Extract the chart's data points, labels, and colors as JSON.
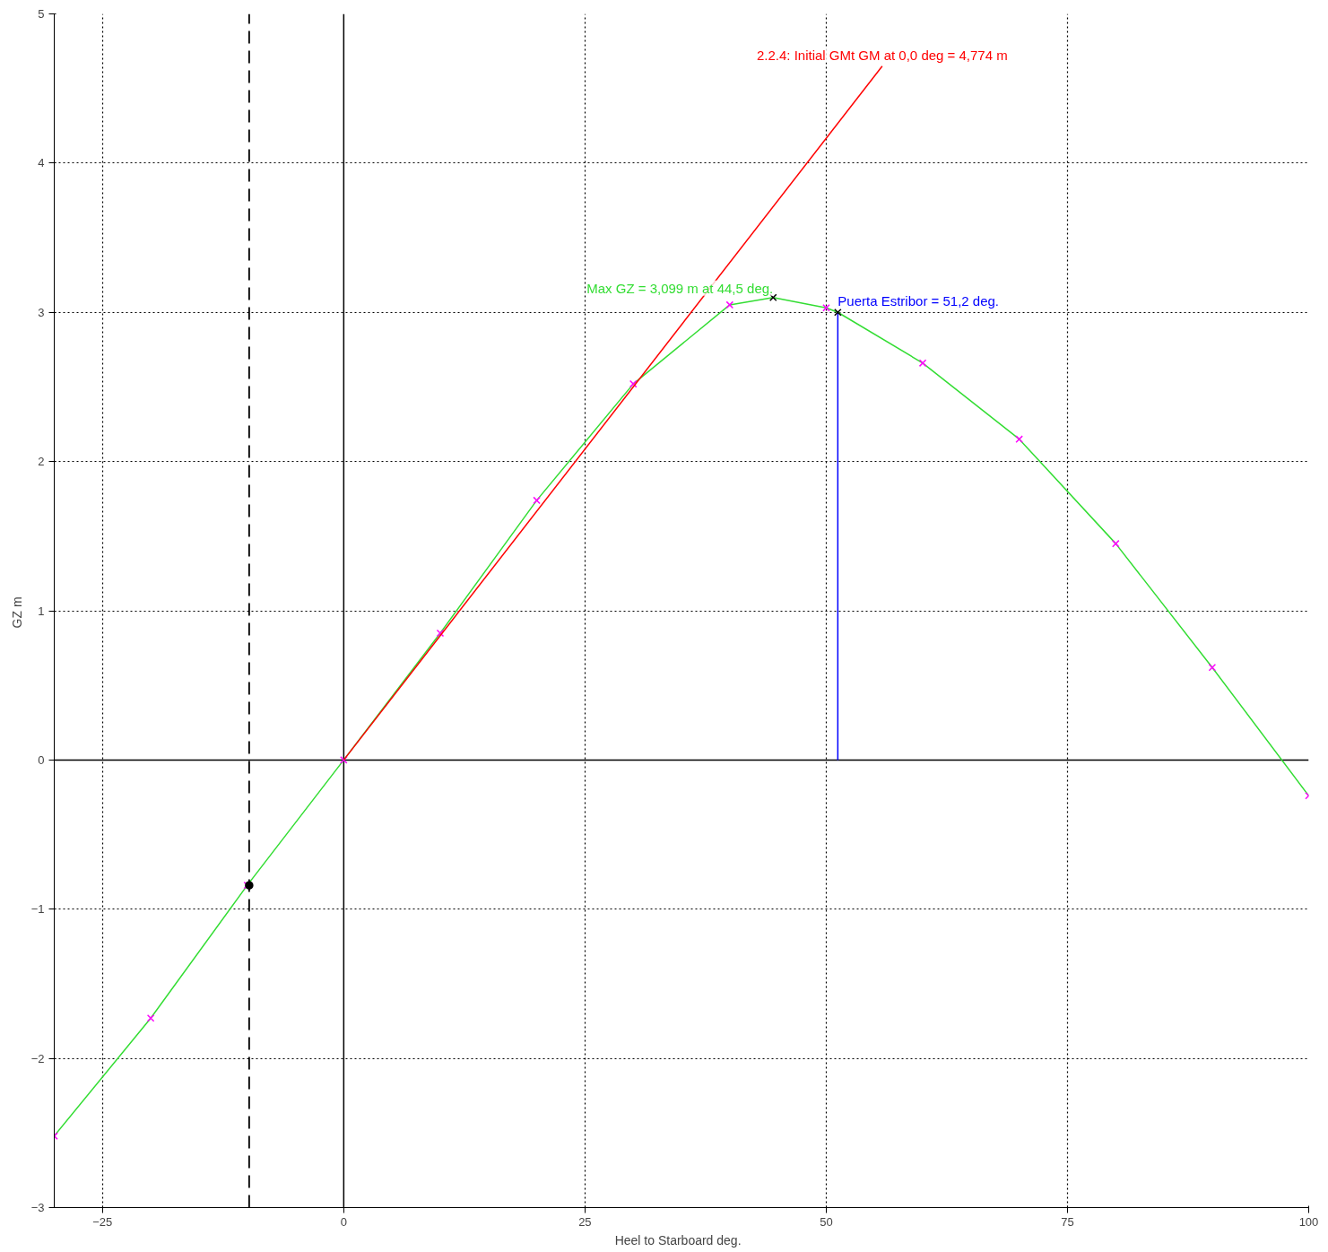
{
  "chart_data": {
    "type": "line",
    "xlabel": "Heel to Starboard   deg.",
    "ylabel": "GZ  m",
    "xlim": [
      -30,
      100
    ],
    "ylim": [
      -3,
      5
    ],
    "xticks": [
      -25,
      0,
      25,
      50,
      75,
      100
    ],
    "yticks": [
      -3,
      -2,
      -1,
      0,
      1,
      2,
      3,
      4,
      5
    ],
    "grid": true,
    "line_style": "solid",
    "x": [
      -30,
      -20,
      -10,
      0,
      10,
      20,
      30,
      40,
      50,
      60,
      70,
      80,
      90,
      100
    ],
    "series": [
      {
        "type": "line",
        "color": "#000000",
        "x": [
          0,
          0
        ],
        "values": [
          -3,
          5
        ]
      },
      {
        "type": "line",
        "color": "#000000",
        "x": [
          -30,
          100
        ],
        "values": [
          0,
          0
        ]
      },
      {
        "name": "Max GZ = 3,099 m at 44,5 deg.",
        "color": "#33dd33",
        "x": [
          -30,
          -20,
          -10,
          0,
          10,
          20,
          30,
          40,
          44.5,
          50,
          51.2,
          60,
          70,
          80,
          90,
          100
        ],
        "values": [
          -2.52,
          -1.73,
          -0.84,
          0,
          0.85,
          1.74,
          2.52,
          3.05,
          3.099,
          3.03,
          3.0,
          2.66,
          2.15,
          1.45,
          0.62,
          -0.24
        ]
      },
      {
        "type": "scatter",
        "marker": "cross",
        "color": "#ff00ff",
        "values": [
          -2.52,
          -1.73,
          -0.84,
          0,
          0.85,
          1.74,
          2.52,
          3.05,
          3.03,
          2.66,
          2.15,
          1.45,
          0.62,
          -0.24
        ]
      },
      {
        "type": "line",
        "name": "2.2.4: Initial GMt GM at 0,0 deg = 4,774 m",
        "color": "#ff0000",
        "x": [
          0,
          55.8
        ],
        "values": [
          0,
          4.65
        ]
      },
      {
        "type": "line",
        "name": "Puerta Estribor  = 51,2 deg.",
        "color": "#0000ff",
        "x": [
          51.2,
          51.2
        ],
        "values": [
          0,
          3.0
        ]
      },
      {
        "type": "scatter",
        "marker": "cross",
        "color": "#000000",
        "x": [
          44.5,
          51.2
        ],
        "values": [
          3.099,
          3.0
        ]
      },
      {
        "type": "scatter",
        "marker": "circle",
        "color": "#000000",
        "x": [
          -9.8
        ],
        "values": [
          -0.84
        ]
      }
    ],
    "ref_lines": [
      {
        "axis": "x",
        "value": -9.8,
        "color": "#000000",
        "line_style": "dashed"
      }
    ]
  }
}
